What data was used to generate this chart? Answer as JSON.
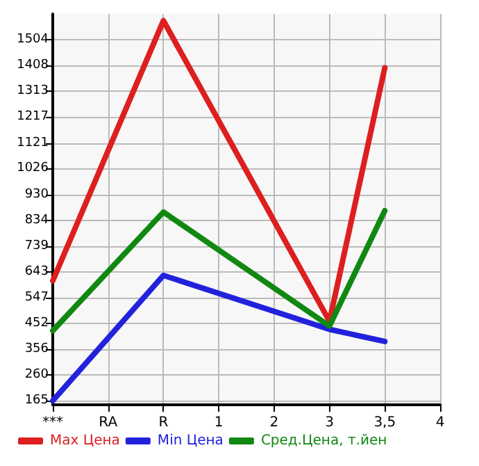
{
  "chart_data": {
    "type": "line",
    "categories": [
      "***",
      "RA",
      "R",
      "1",
      "2",
      "3",
      "3,5",
      "4"
    ],
    "series": [
      {
        "name": "Max Цена",
        "color": "#dd1f1f",
        "values": [
          610,
          null,
          1575,
          null,
          null,
          460,
          1400,
          null
        ]
      },
      {
        "name": "Min Цена",
        "color": "#2222dd",
        "values": [
          165,
          null,
          630,
          null,
          null,
          430,
          385,
          null
        ]
      },
      {
        "name": "Сред.Цена, т.йен",
        "color": "#118811",
        "values": [
          425,
          null,
          865,
          null,
          null,
          442,
          870,
          null
        ]
      }
    ],
    "ylim": [
      150,
      1600
    ],
    "yticks": [
      165,
      260,
      356,
      452,
      547,
      643,
      739,
      834,
      930,
      1026,
      1121,
      1217,
      1313,
      1408,
      1504
    ],
    "grid": true,
    "legend": "bottom",
    "marker": "none",
    "line_style": "solid"
  }
}
